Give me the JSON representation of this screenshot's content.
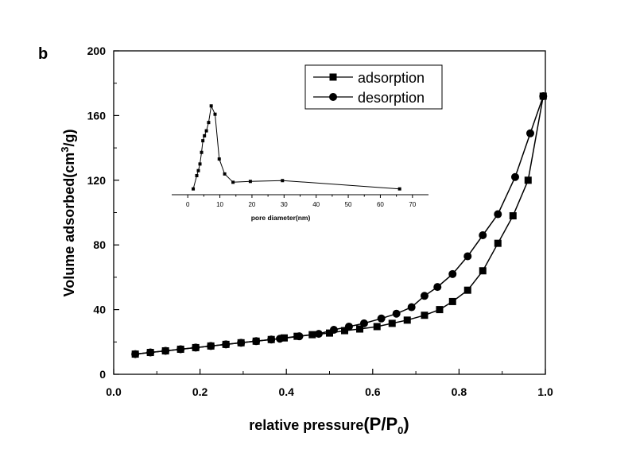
{
  "panel_label": "b",
  "chart_data": [
    {
      "type": "line",
      "xlabel_main": "relative pressure",
      "xlabel_paren": "(P/P",
      "xlabel_sub": "0",
      "xlabel_close": ")",
      "ylabel_main": "Volume adsorbed(cm",
      "ylabel_sup": "3",
      "ylabel_end": "/g)",
      "xlim": [
        0.0,
        1.0
      ],
      "ylim": [
        0,
        200
      ],
      "xticks": [
        "0.0",
        "0.2",
        "0.4",
        "0.6",
        "0.8",
        "1.0"
      ],
      "yticks": [
        "0",
        "40",
        "80",
        "120",
        "160",
        "200"
      ],
      "legend_position": "top-right",
      "series": [
        {
          "name": "adsorption",
          "marker": "square",
          "x": [
            0.05,
            0.085,
            0.12,
            0.155,
            0.19,
            0.225,
            0.26,
            0.295,
            0.33,
            0.365,
            0.395,
            0.425,
            0.46,
            0.5,
            0.535,
            0.57,
            0.61,
            0.645,
            0.68,
            0.72,
            0.755,
            0.785,
            0.82,
            0.855,
            0.89,
            0.925,
            0.96,
            0.995
          ],
          "y": [
            12.5,
            13.5,
            14.5,
            15.5,
            16.5,
            17.5,
            18.5,
            19.5,
            20.5,
            21.5,
            22.5,
            23.5,
            24.5,
            25.5,
            27,
            28,
            29.5,
            31.5,
            33.5,
            36.5,
            40,
            45,
            52,
            64,
            81,
            98,
            120,
            172
          ]
        },
        {
          "name": "desorption",
          "marker": "circle",
          "x": [
            0.05,
            0.085,
            0.12,
            0.155,
            0.19,
            0.225,
            0.26,
            0.295,
            0.33,
            0.365,
            0.385,
            0.43,
            0.475,
            0.51,
            0.545,
            0.58,
            0.62,
            0.655,
            0.69,
            0.72,
            0.75,
            0.785,
            0.82,
            0.855,
            0.89,
            0.93,
            0.965,
            0.995
          ],
          "y": [
            12.5,
            13.5,
            14.5,
            15.5,
            16.5,
            17.5,
            18.5,
            19.5,
            20.5,
            21.5,
            22,
            23.5,
            25,
            27.5,
            29.5,
            31.5,
            34.5,
            37.5,
            41.5,
            48.5,
            54,
            62,
            73,
            86,
            99,
            122,
            149,
            172
          ]
        }
      ]
    },
    {
      "type": "line",
      "xlabel": "pore diameter(nm)",
      "xlim": [
        -5,
        75
      ],
      "ylim": [
        113.5,
        170
      ],
      "xticks": [
        "0",
        "10",
        "20",
        "30",
        "40",
        "50",
        "60",
        "70"
      ],
      "series": [
        {
          "marker": "square",
          "x": [
            1.7,
            2.8,
            3.3,
            3.8,
            4.3,
            4.7,
            5.2,
            5.8,
            6.5,
            7.3,
            8.5,
            9.8,
            11.5,
            14.1,
            19.5,
            29.5,
            66
          ],
          "y": [
            117,
            125,
            128,
            132,
            139,
            146,
            149,
            152,
            157,
            167,
            162,
            135,
            126,
            121,
            121.5,
            122,
            117
          ]
        }
      ]
    }
  ]
}
